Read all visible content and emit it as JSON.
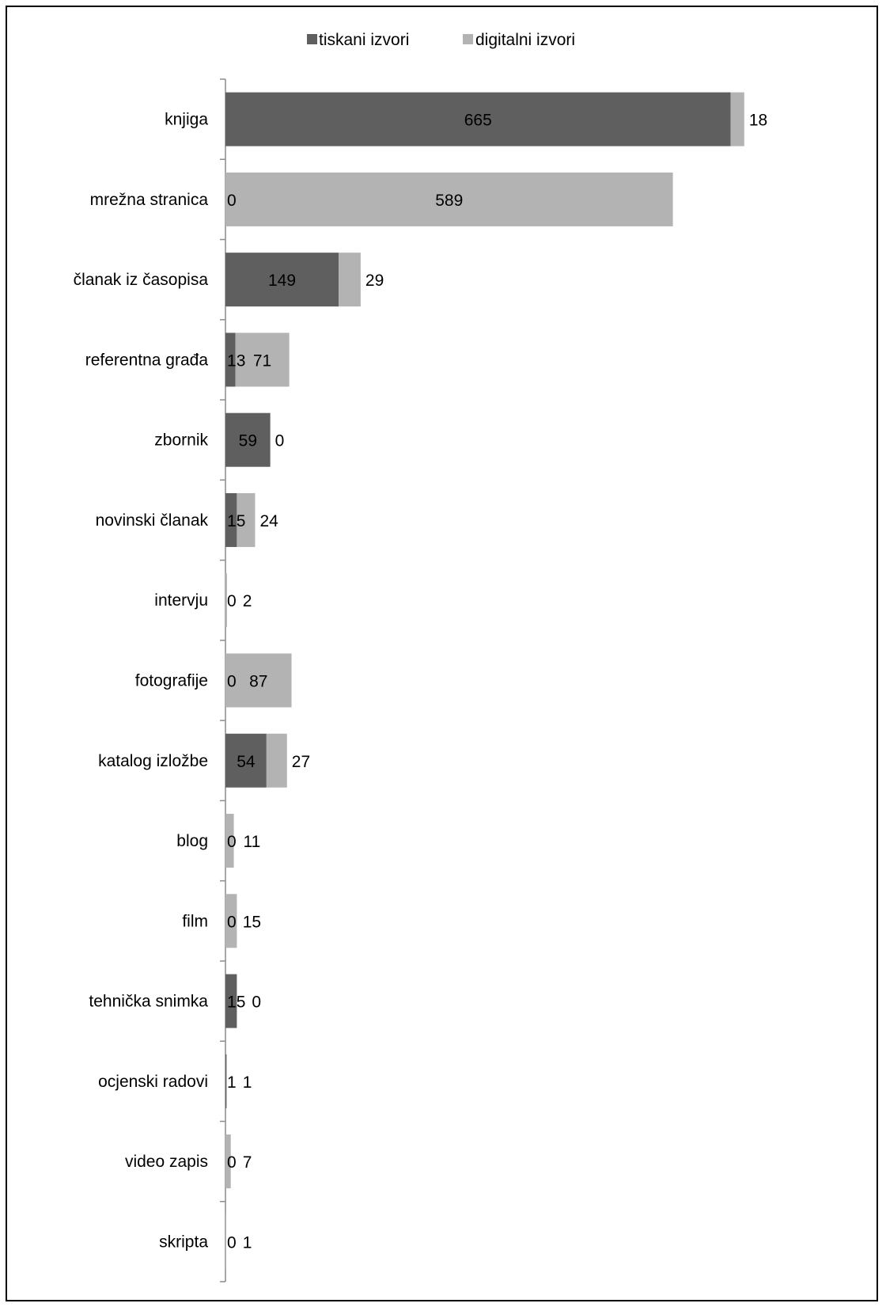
{
  "chart_data": {
    "type": "bar",
    "orientation": "horizontal",
    "stacked": true,
    "categories": [
      "knjiga",
      "mrežna stranica",
      "članak iz časopisa",
      "referentna građa",
      "zbornik",
      "novinski članak",
      "intervju",
      "fotografije",
      "katalog izložbe",
      "blog",
      "film",
      "tehnička snimka",
      "ocjenski radovi",
      "video zapis",
      "skripta"
    ],
    "series": [
      {
        "name": "tiskani izvori",
        "color": "#5f5f5f",
        "values": [
          665,
          0,
          149,
          13,
          59,
          15,
          0,
          0,
          54,
          0,
          0,
          15,
          1,
          0,
          0
        ]
      },
      {
        "name": "digitalni izvori",
        "color": "#b3b3b3",
        "values": [
          18,
          589,
          29,
          71,
          0,
          24,
          2,
          87,
          27,
          11,
          15,
          0,
          1,
          7,
          1
        ]
      }
    ],
    "title": "",
    "xlabel": "",
    "ylabel": "",
    "xlim": [
      0,
      700
    ],
    "grid": false,
    "legend_position": "top",
    "data_labels": true
  }
}
